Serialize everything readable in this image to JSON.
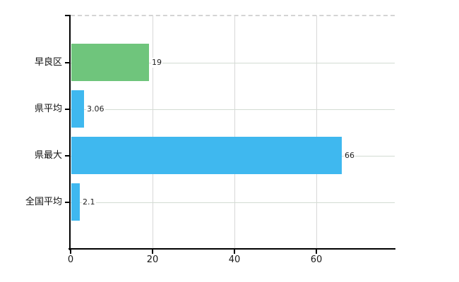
{
  "chart_data": {
    "type": "bar",
    "orientation": "horizontal",
    "title": "",
    "xlabel": "",
    "ylabel": "",
    "categories": [
      "早良区",
      "県平均",
      "県最大",
      "全国平均"
    ],
    "values": [
      19,
      3.06,
      66,
      2.1
    ],
    "value_labels": [
      "19",
      "3.06",
      "66",
      "2.1"
    ],
    "bar_colors": [
      "#6fc57c",
      "#3fb8ef",
      "#3fb8ef",
      "#3fb8ef"
    ],
    "x_ticks": [
      0,
      20,
      40,
      60
    ],
    "x_tick_labels": [
      "0",
      "20",
      "40",
      "60"
    ],
    "xlim": [
      0,
      79.2
    ],
    "grid": true,
    "legend": false,
    "gridline_color_vertical": "#d8d8d8",
    "gridline_color_horizontal": "#d3dcd3",
    "axis_color": "#000000",
    "background_color": "#ffffff"
  }
}
